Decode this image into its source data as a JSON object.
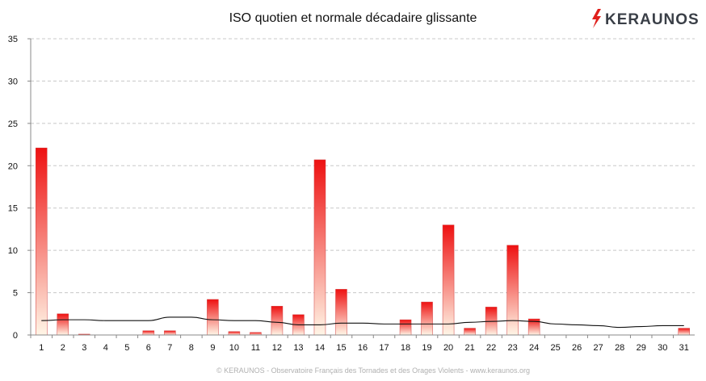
{
  "chart_data": {
    "type": "bar",
    "title": "ISO quotien et normale décadaire glissante",
    "xlabel": "",
    "ylabel": "",
    "categories": [
      "1",
      "2",
      "3",
      "4",
      "5",
      "6",
      "7",
      "8",
      "9",
      "10",
      "11",
      "12",
      "13",
      "14",
      "15",
      "16",
      "17",
      "18",
      "19",
      "20",
      "21",
      "22",
      "23",
      "24",
      "25",
      "26",
      "27",
      "28",
      "29",
      "30",
      "31"
    ],
    "ylim": [
      0,
      35
    ],
    "yticks": [
      "0",
      "5",
      "10",
      "15",
      "20",
      "25",
      "30",
      "35"
    ],
    "grid": true,
    "series": [
      {
        "type": "bar",
        "values": [
          22.1,
          2.5,
          0.1,
          0,
          0,
          0.5,
          0.5,
          0,
          4.2,
          0.4,
          0.3,
          3.4,
          2.4,
          20.7,
          5.4,
          0,
          0,
          1.8,
          3.9,
          13.0,
          0.8,
          3.3,
          10.6,
          1.9,
          0,
          0,
          0,
          0,
          0,
          0,
          0.8
        ],
        "color_top": "#ee1111",
        "color_bottom": "#fff5e6"
      },
      {
        "type": "line",
        "values": [
          1.7,
          1.8,
          1.8,
          1.7,
          1.7,
          1.7,
          2.1,
          2.1,
          1.8,
          1.7,
          1.7,
          1.5,
          1.2,
          1.2,
          1.4,
          1.4,
          1.3,
          1.3,
          1.3,
          1.3,
          1.5,
          1.6,
          1.7,
          1.6,
          1.3,
          1.2,
          1.1,
          0.9,
          1.0,
          1.1,
          1.1
        ],
        "color": "#111111"
      }
    ]
  },
  "brand": {
    "logo_text": "KERAUNOS",
    "logo_color": "#e0201c"
  },
  "footer": {
    "text": "© KERAUNOS - Observatoire Français des Tornades et des Orages Violents - www.keraunos.org"
  }
}
